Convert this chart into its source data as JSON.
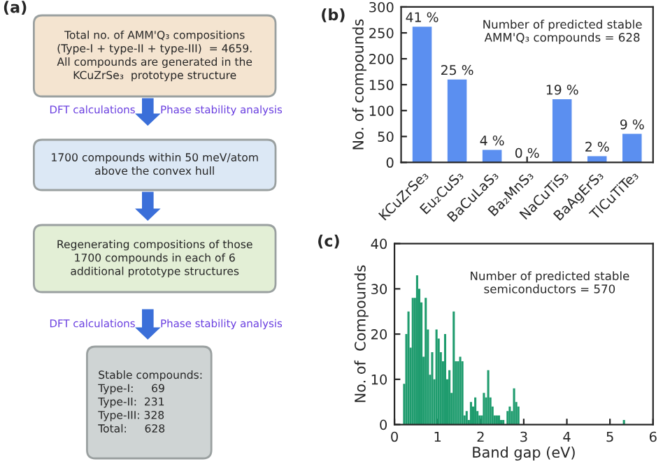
{
  "chart_data": [
    {
      "type": "other",
      "title": "(a)",
      "annotations": [
        "Total no. of AMM'Q₃ compositions\n(Type-I + type-II + type-III)  = 4659.\nAll compounds are generated in the\nKCuZrSe₃  prototype structure",
        "DFT calculations",
        "Phase stability analysis",
        "1700 compounds within 50 meV/atom\nabove the convex hull",
        "Regenerating compositions of those\n1700 compounds in each of 6\nadditional prototype structures",
        "DFT calculations",
        "Phase stability analysis",
        "Stable compounds:\nType-I:     69\nType-II:  231\nType-III: 328\nTotal:     628"
      ]
    },
    {
      "type": "bar",
      "title": "(b)",
      "ylabel": "No. of compounds",
      "categories": [
        "KCuZrSe₃",
        "Eu₂CuS₃",
        "BaCuLaS₃",
        "Ba₂MnS₃",
        "NaCuTiS₃",
        "BaAgErS₃",
        "TlCuTiTe₃"
      ],
      "values": [
        262,
        160,
        24,
        0,
        122,
        12,
        55
      ],
      "color": "#5b8ff0",
      "ylim": [
        0,
        300
      ],
      "yticks": [
        0,
        50,
        100,
        150,
        200,
        250,
        300
      ],
      "annotations": [
        "Number of predicted stable\nAMM'Q₃ compounds = 628",
        {
          "text": "41 %",
          "x": "KCuZrSe₃",
          "y": 262
        },
        {
          "text": "25 %",
          "x": "Eu₂CuS₃",
          "y": 160
        },
        {
          "text": "4 %",
          "x": "BaCuLaS₃",
          "y": 24
        },
        {
          "text": "0 %",
          "x": "Ba₂MnS₃",
          "y": 0
        },
        {
          "text": "19 %",
          "x": "NaCuTiS₃",
          "y": 122
        },
        {
          "text": "2 %",
          "x": "BaAgErS₃",
          "y": 12
        },
        {
          "text": "9 %",
          "x": "TlCuTiTe₃",
          "y": 55
        }
      ],
      "grid": false,
      "legend": false
    },
    {
      "type": "histogram",
      "title": "(c)",
      "xlabel": "Band gap (eV)",
      "ylabel": "No. of  Compounds",
      "color": "#1f9c6e",
      "bins": [
        0.2,
        0.25,
        0.3,
        0.35,
        0.4,
        0.45,
        0.5,
        0.55,
        0.6,
        0.65,
        0.7,
        0.75,
        0.8,
        0.85,
        0.9,
        0.95,
        1.0,
        1.05,
        1.1,
        1.15,
        1.2,
        1.25,
        1.3,
        1.35,
        1.4,
        1.45,
        1.5,
        1.55,
        1.6,
        1.65,
        1.7,
        1.75,
        1.8,
        1.85,
        1.9,
        1.95,
        2.0,
        2.05,
        2.1,
        2.15,
        2.2,
        2.25,
        2.3,
        2.35,
        2.4,
        2.45,
        2.5,
        2.55,
        2.6,
        2.65,
        2.7,
        2.75,
        2.8,
        2.85,
        2.9,
        2.95,
        3.0,
        3.05,
        3.1,
        3.15,
        3.2,
        3.25,
        3.3,
        3.35,
        3.4,
        3.45,
        3.5,
        3.55,
        3.6,
        3.65,
        3.7,
        3.75,
        3.8,
        3.85,
        3.9,
        3.95,
        4.0,
        4.05,
        4.1,
        4.15,
        4.2,
        4.25,
        4.3,
        4.35,
        4.4,
        4.45,
        4.5,
        4.55,
        4.6,
        4.65,
        4.7,
        4.75,
        4.8,
        4.85,
        4.9,
        4.95,
        5.0,
        5.05,
        5.1,
        5.15,
        5.2,
        5.25,
        5.3,
        5.35
      ],
      "values": [
        9,
        20,
        25,
        17,
        28,
        28,
        33,
        30,
        27,
        15,
        28,
        21,
        11,
        16,
        10,
        21,
        19,
        16,
        14,
        20,
        10,
        12,
        7,
        25,
        14,
        14,
        15,
        14,
        2,
        3,
        1,
        5,
        4,
        6,
        3,
        2,
        2,
        7,
        6,
        12,
        6,
        4,
        2,
        2,
        2,
        1,
        1,
        0,
        3,
        4,
        3,
        8,
        5,
        4,
        0,
        0,
        0,
        0,
        0,
        0,
        0,
        0,
        0,
        0,
        0,
        0,
        0,
        0,
        0,
        0,
        0,
        0,
        0,
        0,
        0,
        0,
        0,
        0,
        0,
        0,
        0,
        0,
        0,
        0,
        0,
        0,
        0,
        0,
        0,
        0,
        0,
        0,
        0,
        0,
        0,
        0,
        0,
        0,
        0,
        0,
        0,
        0,
        1
      ],
      "xlim": [
        0,
        6
      ],
      "xticks": [
        0,
        1,
        2,
        3,
        4,
        5,
        6
      ],
      "ylim": [
        0,
        40
      ],
      "yticks": [
        0,
        10,
        20,
        30,
        40
      ],
      "annotations": [
        "Number of predicted stable\nsemiconductors = 570"
      ],
      "grid": false,
      "legend": false
    }
  ]
}
